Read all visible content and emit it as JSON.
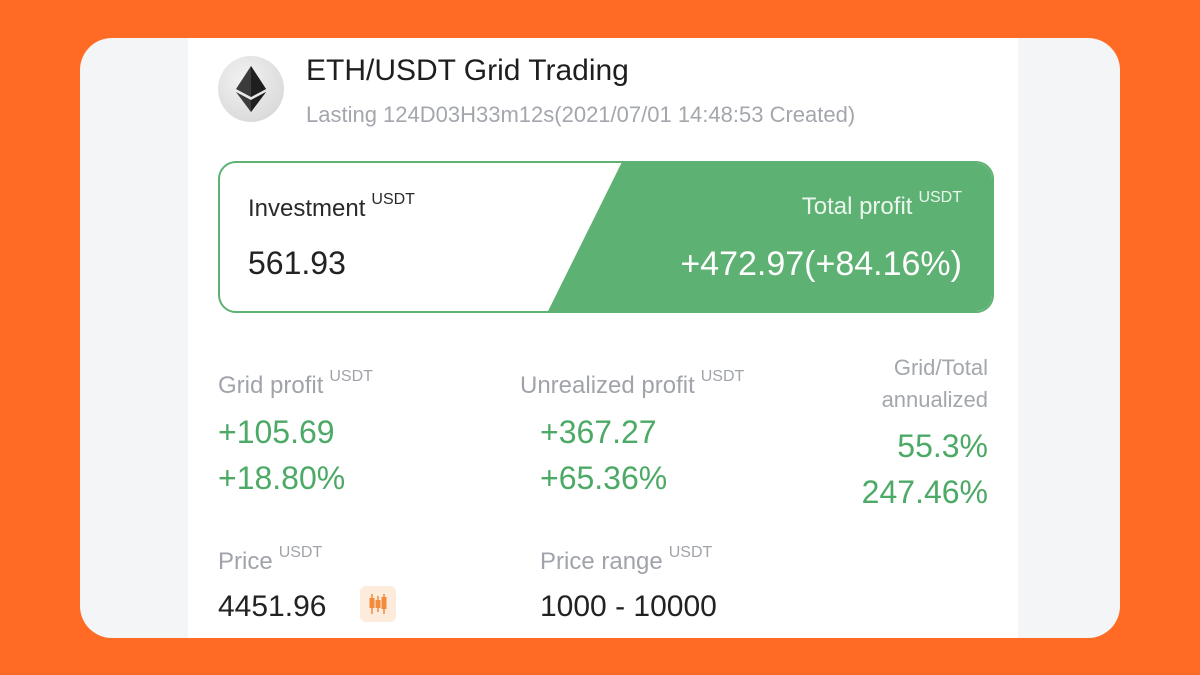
{
  "header": {
    "title": "ETH/USDT Grid Trading",
    "subtitle": "Lasting 124D03H33m12s(2021/07/01 14:48:53 Created)",
    "coin_icon": "ethereum-icon"
  },
  "summary": {
    "investment_label": "Investment",
    "investment_unit": "USDT",
    "investment_value": "561.93",
    "total_profit_label": "Total profit",
    "total_profit_unit": "USDT",
    "total_profit_value": "+472.97(+84.16%)"
  },
  "stats": {
    "grid_profit_label": "Grid profit",
    "grid_profit_unit": "USDT",
    "grid_profit_value": "+105.69",
    "grid_profit_pct": "+18.80%",
    "unrealized_label": "Unrealized profit",
    "unrealized_unit": "USDT",
    "unrealized_value": "+367.27",
    "unrealized_pct": "+65.36%",
    "annualized_label_1": "Grid/Total",
    "annualized_label_2": "annualized",
    "annualized_grid": "55.3%",
    "annualized_total": "247.46%"
  },
  "price": {
    "price_label": "Price",
    "price_unit": "USDT",
    "price_value": "4451.96",
    "range_label": "Price range",
    "range_unit": "USDT",
    "range_value": "1000 - 10000",
    "chart_icon": "candlestick-icon"
  },
  "colors": {
    "background": "#FF6B25",
    "profit_green": "#5DB172"
  }
}
